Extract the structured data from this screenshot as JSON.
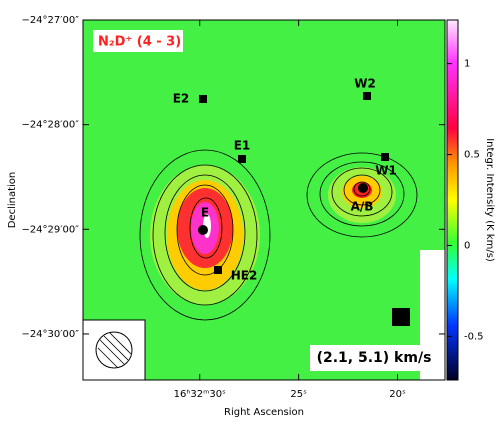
{
  "chart_data": {
    "type": "image",
    "title": "N₂D⁺ (4 - 3)",
    "subtitle": "(2.1, 5.1) km/s",
    "x_label": "Right Ascension",
    "y_label": "Declination",
    "colorbar_label": "Integr. Intensity (K km/s)",
    "xlim": [
      35.9,
      17.6
    ],
    "xticks": [
      {
        "value": 30,
        "label": "16ʰ32ᵐ30ˢ"
      },
      {
        "value": 25,
        "label": "25ˢ"
      },
      {
        "value": 20,
        "label": "20ˢ"
      }
    ],
    "ylim": [
      30.44,
      27
    ],
    "yticks": [
      {
        "value": 27,
        "label": "−24°27′00″"
      },
      {
        "value": 28,
        "label": "−24°28′00″"
      },
      {
        "value": 29,
        "label": "−24°29′00″"
      },
      {
        "value": 30,
        "label": "−24°30′00″"
      }
    ],
    "clim": [
      -0.74,
      1.24
    ],
    "cticks": [
      1,
      0.5,
      0,
      -0.5
    ],
    "annotations": [
      "E2",
      "W2",
      "E1",
      "W1",
      "A/B",
      "E",
      "HE2"
    ]
  }
}
